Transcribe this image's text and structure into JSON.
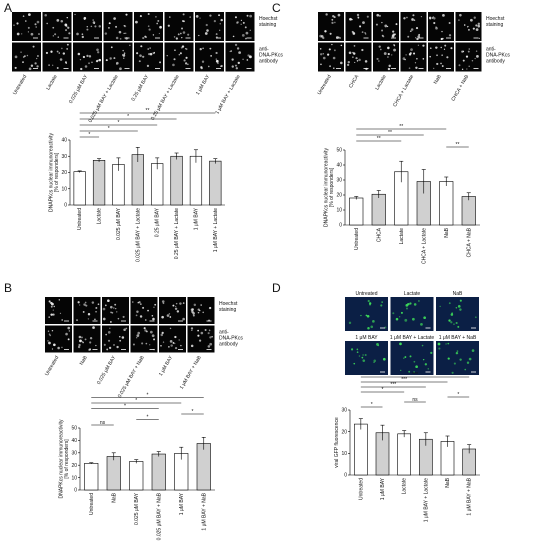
{
  "panel_labels": [
    "A",
    "B",
    "C",
    "D"
  ],
  "image_panels": [
    {
      "columns": [
        "Untreated",
        "Lactate",
        "0.025 μM BAY",
        "0.025 μM BAY + Lactate",
        "0.25 μM BAY",
        "0.25 μM BAY + Lactate",
        "1 μM BAY",
        "1 μM BAY + Lactate"
      ],
      "row_labels": [
        [
          "Hoechst",
          "staining"
        ],
        [
          "anti-",
          "DNA-PKcs",
          "antibody"
        ]
      ]
    },
    {
      "columns": [
        "Untreated",
        "NaB",
        "0.025 μM BAY",
        "0.025 μM BAY + NaB",
        "1 μM BAY",
        "1 μM BAY + NaB"
      ],
      "row_labels": [
        [
          "Hoechst",
          "staining"
        ],
        [
          "anti-",
          "DNA-PKcs",
          "antibody"
        ]
      ]
    },
    {
      "columns": [
        "Untreated",
        "CHCA",
        "Lactate",
        "CHCA + Lactate",
        "NaB",
        "CHCA + NaB"
      ],
      "row_labels": [
        [
          "Hoechst",
          "staining"
        ],
        [
          "anti-",
          "DNA-PKcs",
          "antibody"
        ]
      ]
    }
  ],
  "image_grid": {
    "labels": [
      "Untreated",
      "Lactate",
      "NaB",
      "1 μM BAY",
      "1 μM BAY + Lactate",
      "1 μM BAY + NaB"
    ]
  },
  "chart_data": [
    {
      "type": "bar",
      "ylabel": [
        "DNAPKcs nuclear immunoreactivity",
        "[% of responders]"
      ],
      "categories": [
        "Untreated",
        "Lactate",
        "0.025 μM BAY",
        "0.025 μM BAY + Lactate",
        "0.25 μM BAY",
        "0.25 μM BAY + Lactate",
        "1 μM BAY",
        "1 μM BAY + Lactate"
      ],
      "values": [
        20.5,
        27.5,
        25,
        31,
        25.5,
        30,
        30,
        27
      ],
      "errors": [
        0.5,
        1,
        4,
        4.5,
        3.5,
        2,
        4,
        1.5
      ],
      "colors": [
        "#ffffff",
        "#d0d0d0",
        "#ffffff",
        "#d0d0d0",
        "#ffffff",
        "#d0d0d0",
        "#ffffff",
        "#d0d0d0"
      ],
      "ylim": [
        0,
        40
      ],
      "yticks": [
        0,
        10,
        20,
        30,
        40
      ],
      "significance": [
        {
          "from": 0,
          "to": 1,
          "label": "*"
        },
        {
          "from": 0,
          "to": 3,
          "label": "*"
        },
        {
          "from": 0,
          "to": 4,
          "label": "*"
        },
        {
          "from": 0,
          "to": 5,
          "label": "*"
        },
        {
          "from": 0,
          "to": 7,
          "label": "**"
        }
      ]
    },
    {
      "type": "bar",
      "ylabel": [
        "DNAPKcs nuclear immunoreactivity",
        "[% of responders]"
      ],
      "categories": [
        "Untreated",
        "NaB",
        "0.025 μM BAY",
        "0.025 μM BAY + NaB",
        "1 μM BAY",
        "1 μM BAY + NaB"
      ],
      "values": [
        21.5,
        27,
        23,
        29,
        29.5,
        37.5
      ],
      "errors": [
        0.5,
        3,
        1.5,
        2,
        5,
        5
      ],
      "colors": [
        "#ffffff",
        "#d0d0d0",
        "#ffffff",
        "#d0d0d0",
        "#ffffff",
        "#d0d0d0"
      ],
      "ylim": [
        0,
        50
      ],
      "yticks": [
        0,
        10,
        20,
        30,
        40,
        50
      ],
      "significance": [
        {
          "from": 0,
          "to": 1,
          "label": "ns"
        },
        {
          "from": 2,
          "to": 3,
          "label": "*"
        },
        {
          "from": 4,
          "to": 5,
          "label": "*"
        },
        {
          "from": 0,
          "to": 3,
          "label": "*"
        },
        {
          "from": 0,
          "to": 4,
          "label": "*"
        },
        {
          "from": 0,
          "to": 5,
          "label": "*"
        }
      ]
    },
    {
      "type": "bar",
      "ylabel": [
        "DNAPKcs nuclear immunoreactivity",
        "[% of responders]"
      ],
      "categories": [
        "Untreated",
        "CHCA",
        "Lactate",
        "CHCA + Lactate",
        "NaB",
        "CHCA + NaB"
      ],
      "values": [
        18,
        20.5,
        35.5,
        29,
        29,
        19
      ],
      "errors": [
        1,
        2.5,
        7,
        8,
        3,
        2.5
      ],
      "colors": [
        "#ffffff",
        "#d0d0d0",
        "#ffffff",
        "#d0d0d0",
        "#ffffff",
        "#d0d0d0"
      ],
      "ylim": [
        0,
        50
      ],
      "yticks": [
        0,
        10,
        20,
        30,
        40,
        50
      ],
      "significance": [
        {
          "from": 4,
          "to": 5,
          "label": "**"
        },
        {
          "from": 0,
          "to": 2,
          "label": "**"
        },
        {
          "from": 0,
          "to": 3,
          "label": "**"
        },
        {
          "from": 0,
          "to": 4,
          "label": "**"
        }
      ]
    },
    {
      "type": "bar",
      "ylabel": [
        "viral GFP fluorescence"
      ],
      "categories": [
        "Untreated",
        "1 μM BAY",
        "Lactate",
        "1 μM BAY + Lactate",
        "NaB",
        "1 μM BAY + NaB"
      ],
      "values": [
        23.5,
        19.5,
        19,
        16.5,
        15.5,
        12
      ],
      "errors": [
        2.5,
        3.5,
        1.5,
        3,
        2.5,
        2
      ],
      "colors": [
        "#ffffff",
        "#d0d0d0",
        "#ffffff",
        "#d0d0d0",
        "#ffffff",
        "#d0d0d0"
      ],
      "ylim": [
        0,
        30
      ],
      "yticks": [
        0,
        10,
        20,
        30
      ],
      "significance": [
        {
          "from": 0,
          "to": 1,
          "label": "*"
        },
        {
          "from": 2,
          "to": 3,
          "label": "ns"
        },
        {
          "from": 4,
          "to": 5,
          "label": "*"
        },
        {
          "from": 0,
          "to": 2,
          "label": "*"
        },
        {
          "from": 0,
          "to": 3,
          "label": "***"
        },
        {
          "from": 0,
          "to": 4,
          "label": "***"
        },
        {
          "from": 0,
          "to": 5,
          "label": "***"
        }
      ]
    }
  ]
}
